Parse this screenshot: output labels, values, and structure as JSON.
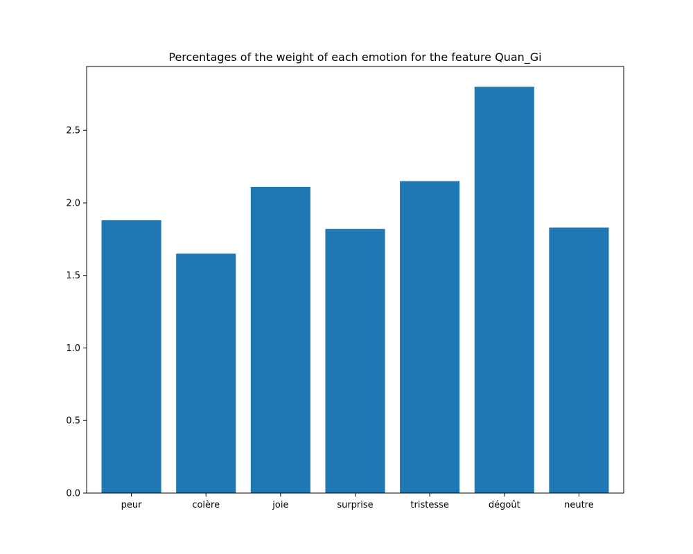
{
  "chart_data": {
    "type": "bar",
    "title": "Percentages of the weight of each emotion for the feature Quan_Gi",
    "xlabel": "",
    "ylabel": "",
    "categories": [
      "peur",
      "colère",
      "joie",
      "surprise",
      "tristesse",
      "dégoût",
      "neutre"
    ],
    "values": [
      1.88,
      1.65,
      2.11,
      1.82,
      2.15,
      2.8,
      1.83
    ],
    "ylim": [
      0,
      2.94
    ],
    "yticks": [
      0.0,
      0.5,
      1.0,
      1.5,
      2.0,
      2.5
    ],
    "ytick_labels": [
      "0.0",
      "0.5",
      "1.0",
      "1.5",
      "2.0",
      "2.5"
    ],
    "bar_color": "#1f77b4",
    "grid": false,
    "legend": "none"
  }
}
